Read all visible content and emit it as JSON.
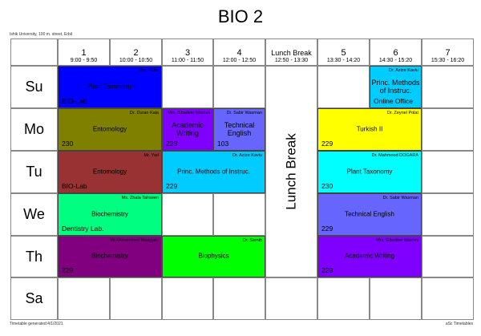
{
  "title": "BIO 2",
  "school": "Ishik University, 100 m. street, Erbil",
  "columns": [
    {
      "num": "1",
      "time": "9:00 - 9:50"
    },
    {
      "num": "2",
      "time": "10:00 - 10:50"
    },
    {
      "num": "3",
      "time": "11:00 - 11:50"
    },
    {
      "num": "4",
      "time": "12:00 - 12:50"
    },
    {
      "num": "Lunch Break",
      "time": "12:50 - 13:30",
      "lunch": true
    },
    {
      "num": "5",
      "time": "13:30 - 14:20"
    },
    {
      "num": "6",
      "time": "14:30 - 15:20"
    },
    {
      "num": "7",
      "time": "15:30 - 16:20"
    }
  ],
  "days": [
    "Su",
    "Mo",
    "Tu",
    "We",
    "Th",
    "Sa"
  ],
  "lunch_label": "Lunch Break",
  "lessons": [
    {
      "day": 0,
      "col": 0,
      "span": 2,
      "teacher": "Mrs. Nuha",
      "subject": "Plant Taxonomy",
      "room": "BIO-Lab",
      "color": "#0000ff"
    },
    {
      "day": 0,
      "col": 6,
      "span": 1,
      "teacher": "Dr. Azize Kavlu",
      "subject": "Princ. Methods of Instruc.",
      "room": "Online Office",
      "color": "#00ccff",
      "narrow": true
    },
    {
      "day": 1,
      "col": 0,
      "span": 2,
      "teacher": "Dr. Duran Kala",
      "subject": "Entomology",
      "room": "230",
      "color": "#808000"
    },
    {
      "day": 1,
      "col": 2,
      "span": 1,
      "teacher": "Mrs. Ghadeer Mashni",
      "subject": "Academic Writing",
      "room": "229",
      "color": "#8000ff",
      "narrow": true
    },
    {
      "day": 1,
      "col": 3,
      "span": 1,
      "teacher": "Dr. Sabir Wasman",
      "subject": "Technical English",
      "room": "103",
      "color": "#6666ff",
      "narrow": true
    },
    {
      "day": 1,
      "col": 5,
      "span": 2,
      "teacher": "Dr. Zeynel Polat",
      "subject": "Turkish II",
      "room": "229",
      "color": "#ffff00"
    },
    {
      "day": 2,
      "col": 0,
      "span": 2,
      "teacher": "Mr. Yad",
      "subject": "Entomology",
      "room": "BIO-Lab",
      "color": "#993333"
    },
    {
      "day": 2,
      "col": 2,
      "span": 2,
      "teacher": "Dr. Azize Kavlu",
      "subject": "Princ. Methods of Instruc.",
      "room": "229",
      "color": "#00ccff"
    },
    {
      "day": 2,
      "col": 5,
      "span": 2,
      "teacher": "Dr. Mahmoud DOGARA",
      "subject": "Plant Taxonomy",
      "room": "230",
      "color": "#00ffff"
    },
    {
      "day": 3,
      "col": 0,
      "span": 2,
      "teacher": "Ms. Zhala Tahseen",
      "subject": "Biochemistry",
      "room": "Dentistry Lab.",
      "color": "#00ff80"
    },
    {
      "day": 3,
      "col": 5,
      "span": 2,
      "teacher": "Dr. Sabir Wasman",
      "subject": "Technical English",
      "room": "229",
      "color": "#6666ff"
    },
    {
      "day": 4,
      "col": 0,
      "span": 2,
      "teacher": "Mr.Mohammed Moayyed",
      "subject": "Biochemistry",
      "room": "229",
      "color": "#800080"
    },
    {
      "day": 4,
      "col": 2,
      "span": 2,
      "teacher": "Dr. Semih",
      "subject": "Biophysics",
      "room": "",
      "color": "#00ff00"
    },
    {
      "day": 4,
      "col": 5,
      "span": 2,
      "teacher": "Mrs. Ghadeer Mashni",
      "subject": "Academic Writing",
      "room": "229",
      "color": "#8000ff"
    }
  ],
  "footer": {
    "generated": "Timetable generated:4/1/2021",
    "brand": "aSc Timetables"
  }
}
